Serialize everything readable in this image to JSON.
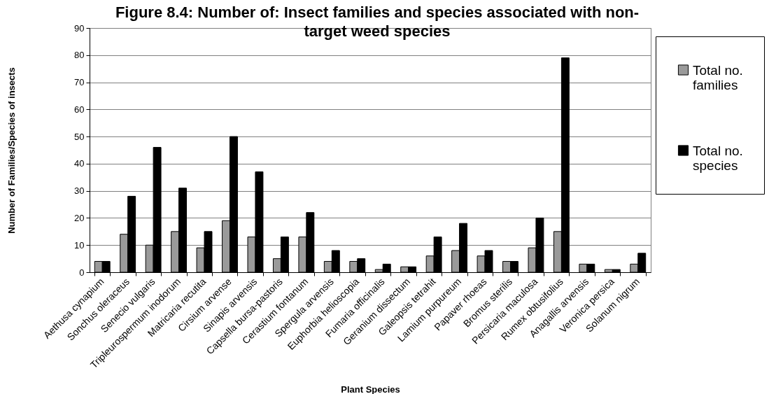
{
  "chart_data": {
    "type": "bar",
    "title": "Figure 8.4: Number of: Insect families and species associated with non-target weed species",
    "xlabel": "Plant Species",
    "ylabel": "Number of Families/Species of insects",
    "categories": [
      "Aethusa cynapium",
      "Sonchus oleraceus",
      "Senecio vulgaris",
      "Tripleurospermum inodorum",
      "Matricaria recutita",
      "Cirsium arvense",
      "Sinapis arvensis",
      "Capsella bursa-pastoris",
      "Cerastium fontanum",
      "Spergula arvensis",
      "Euphorbia helioscopia",
      "Fumaria officinalis",
      "Geranium dissectum",
      "Galeopsis tetrahit",
      "Lamium purpureum",
      "Papaver rhoeas",
      "Bromus sterilis",
      "Persicaria maculosa",
      "Rumex obtusifolius",
      "Anagallis arvensis",
      "Veronica persica",
      "Solanum nigrum"
    ],
    "series": [
      {
        "name": "Total no. families",
        "color": "#9a9a9a",
        "values": [
          4,
          14,
          10,
          15,
          9,
          19,
          13,
          5,
          13,
          4,
          4,
          1,
          2,
          6,
          8,
          6,
          4,
          9,
          15,
          3,
          1,
          3
        ]
      },
      {
        "name": "Total no. species",
        "color": "#000000",
        "values": [
          4,
          28,
          46,
          31,
          15,
          50,
          37,
          13,
          22,
          8,
          5,
          3,
          2,
          13,
          18,
          8,
          4,
          20,
          79,
          3,
          1,
          7
        ]
      }
    ],
    "ylim": [
      0,
      90
    ],
    "yticks": [
      0,
      10,
      20,
      30,
      40,
      50,
      60,
      70,
      80,
      90
    ],
    "grid": "y",
    "legend": "right"
  }
}
